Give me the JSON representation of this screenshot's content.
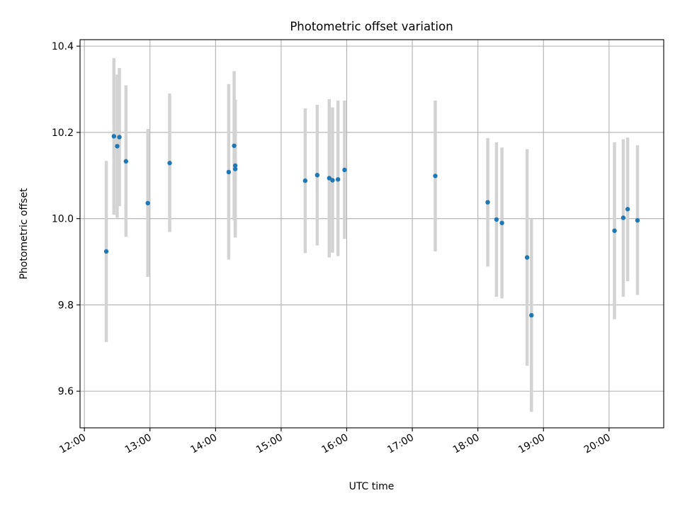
{
  "chart_data": {
    "type": "scatter",
    "title": "Photometric offset variation",
    "xlabel": "UTC time",
    "ylabel": "Photometric offset",
    "xlim": [
      "11:56",
      "20:50"
    ],
    "ylim": [
      9.515,
      10.415
    ],
    "x_ticks": [
      "12:00",
      "13:00",
      "14:00",
      "15:00",
      "16:00",
      "17:00",
      "18:00",
      "19:00",
      "20:00"
    ],
    "y_ticks": [
      "9.6",
      "9.8",
      "10.0",
      "10.2",
      "10.4"
    ],
    "grid": true,
    "marker_color": "#1f77b4",
    "errorbar_color": "#d3d3d3",
    "points": [
      {
        "t": "12:20",
        "y": 9.924,
        "lo": 9.714,
        "hi": 10.134
      },
      {
        "t": "12:27",
        "y": 10.191,
        "lo": 10.009,
        "hi": 10.372
      },
      {
        "t": "12:30",
        "y": 10.168,
        "lo": 10.002,
        "hi": 10.334
      },
      {
        "t": "12:32",
        "y": 10.189,
        "lo": 10.029,
        "hi": 10.349
      },
      {
        "t": "12:38",
        "y": 10.133,
        "lo": 9.958,
        "hi": 10.309
      },
      {
        "t": "12:58",
        "y": 10.036,
        "lo": 9.865,
        "hi": 10.208
      },
      {
        "t": "13:18",
        "y": 10.129,
        "lo": 9.969,
        "hi": 10.29
      },
      {
        "t": "14:12",
        "y": 10.108,
        "lo": 9.905,
        "hi": 10.312
      },
      {
        "t": "14:17",
        "y": 10.169,
        "lo": 9.996,
        "hi": 10.342
      },
      {
        "t": "14:18",
        "y": 10.115,
        "lo": 9.956,
        "hi": 10.275
      },
      {
        "t": "14:18",
        "y": 10.123,
        "lo": 9.97,
        "hi": 10.276
      },
      {
        "t": "15:22",
        "y": 10.088,
        "lo": 9.92,
        "hi": 10.256
      },
      {
        "t": "15:33",
        "y": 10.101,
        "lo": 9.938,
        "hi": 10.264
      },
      {
        "t": "15:44",
        "y": 10.094,
        "lo": 9.91,
        "hi": 10.277
      },
      {
        "t": "15:47",
        "y": 10.089,
        "lo": 9.921,
        "hi": 10.258
      },
      {
        "t": "15:52",
        "y": 10.091,
        "lo": 9.913,
        "hi": 10.274
      },
      {
        "t": "15:58",
        "y": 10.113,
        "lo": 9.953,
        "hi": 10.274
      },
      {
        "t": "17:21",
        "y": 10.099,
        "lo": 9.924,
        "hi": 10.274
      },
      {
        "t": "18:09",
        "y": 10.038,
        "lo": 9.889,
        "hi": 10.187
      },
      {
        "t": "18:17",
        "y": 9.998,
        "lo": 9.819,
        "hi": 10.177
      },
      {
        "t": "18:22",
        "y": 9.99,
        "lo": 9.815,
        "hi": 10.165
      },
      {
        "t": "18:45",
        "y": 9.91,
        "lo": 9.659,
        "hi": 10.161
      },
      {
        "t": "18:49",
        "y": 9.776,
        "lo": 9.552,
        "hi": 10.0
      },
      {
        "t": "20:05",
        "y": 9.972,
        "lo": 9.767,
        "hi": 10.177
      },
      {
        "t": "20:13",
        "y": 10.002,
        "lo": 9.819,
        "hi": 10.184
      },
      {
        "t": "20:17",
        "y": 10.022,
        "lo": 9.855,
        "hi": 10.188
      },
      {
        "t": "20:26",
        "y": 9.996,
        "lo": 9.823,
        "hi": 10.17
      }
    ]
  }
}
